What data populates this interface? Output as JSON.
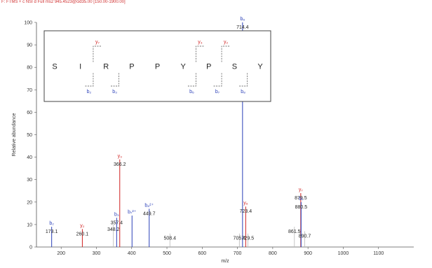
{
  "header_text": "F: FTMS + c NSI d Full ms2 945.4523@cid35.00 [150.00-1900.00]",
  "chart_data": {
    "type": "bar",
    "xlabel": "m/z",
    "ylabel": "Relative abundance",
    "xlim": [
      130,
      1200
    ],
    "ylim": [
      0,
      100
    ],
    "xticks": [
      200,
      300,
      400,
      500,
      600,
      700,
      800,
      900,
      1000,
      1100
    ],
    "yticks": [
      0,
      10,
      20,
      30,
      40,
      50,
      60,
      70,
      80,
      90,
      100
    ],
    "peaks": [
      {
        "mz": 173.1,
        "intensity": 9,
        "label": "173.1",
        "ion": "b₂",
        "ion_type": "b"
      },
      {
        "mz": 260.1,
        "intensity": 8,
        "label": "260.1",
        "ion": "y₂",
        "ion_type": "y"
      },
      {
        "mz": 348.2,
        "intensity": 10,
        "label": "348.2",
        "ion": "",
        "ion_type": ""
      },
      {
        "mz": 357.4,
        "intensity": 13,
        "label": "357.4",
        "ion": "b₃",
        "ion_type": "b"
      },
      {
        "mz": 366.2,
        "intensity": 39,
        "label": "366.2",
        "ion": "y₃",
        "ion_type": "y"
      },
      {
        "mz": 401.0,
        "intensity": 14,
        "label": "",
        "ion": "b₇²⁺",
        "ion_type": "b"
      },
      {
        "mz": 449.7,
        "intensity": 17,
        "label": "449.7",
        "ion": "b₈²⁺",
        "ion_type": "b"
      },
      {
        "mz": 508.4,
        "intensity": 6,
        "label": "508.4",
        "ion": "",
        "ion_type": ""
      },
      {
        "mz": 705.4,
        "intensity": 6,
        "label": "705.4",
        "ion": "",
        "ion_type": ""
      },
      {
        "mz": 714.4,
        "intensity": 100,
        "label": "714.4",
        "ion": "b₆",
        "ion_type": "b"
      },
      {
        "mz": 723.4,
        "intensity": 18,
        "label": "723.4",
        "ion": "y₆",
        "ion_type": "y"
      },
      {
        "mz": 729.5,
        "intensity": 6,
        "label": "729.5",
        "ion": "",
        "ion_type": ""
      },
      {
        "mz": 861.5,
        "intensity": 9,
        "label": "861.5",
        "ion": "",
        "ion_type": ""
      },
      {
        "mz": 879.5,
        "intensity": 24,
        "label": "879.5",
        "ion": "y₇",
        "ion_type": "y"
      },
      {
        "mz": 880.5,
        "intensity": 20,
        "label": "880.5",
        "ion": "b₇",
        "ion_type": "b"
      },
      {
        "mz": 890.7,
        "intensity": 7,
        "label": "890.7",
        "ion": "",
        "ion_type": ""
      }
    ],
    "sequence": [
      "S",
      "I",
      "R",
      "P",
      "P",
      "Y",
      "P",
      "S",
      "Y"
    ],
    "y_fragments": [
      {
        "after_residue": 2,
        "label": "y₇"
      },
      {
        "after_residue": 6,
        "label": "y₃"
      },
      {
        "after_residue": 7,
        "label": "y₂"
      }
    ],
    "b_fragments": [
      {
        "after_residue": 2,
        "label": "b₂"
      },
      {
        "after_residue": 3,
        "label": "b₃"
      },
      {
        "after_residue": 6,
        "label": "b₆"
      },
      {
        "after_residue": 7,
        "label": "b₇"
      },
      {
        "after_residue": 8,
        "label": "b₈"
      }
    ]
  }
}
